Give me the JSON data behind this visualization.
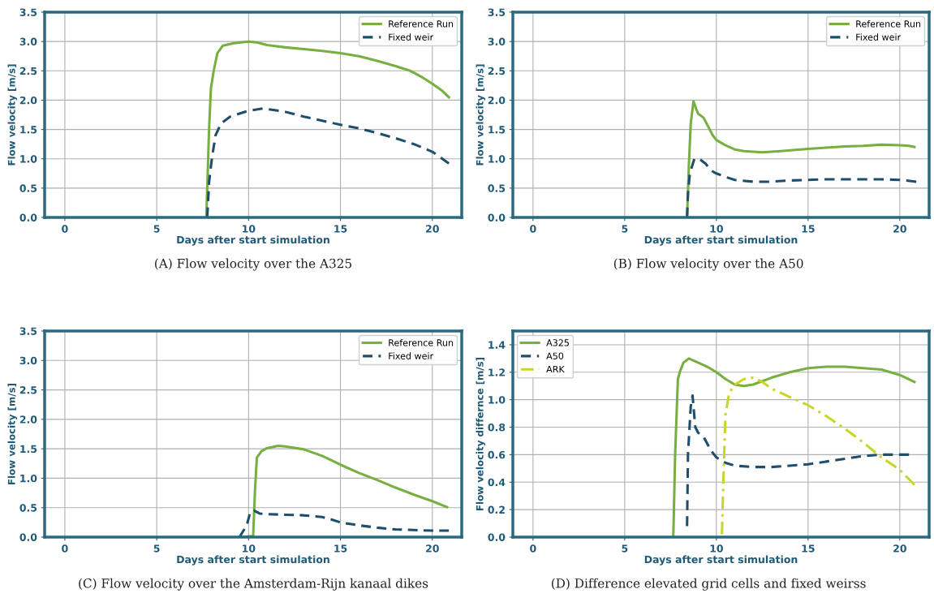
{
  "chart_data": [
    {
      "type": "line",
      "xlabel": "Days after start simulation",
      "ylabel": "Flow velocity [m/s]",
      "xlim": [
        -1.1,
        21.6
      ],
      "xticks": [
        0,
        5,
        10,
        15,
        20
      ],
      "ylim": [
        0,
        3.5
      ],
      "yticks": [
        {
          "value": 0,
          "label": "0.0"
        },
        0.5,
        {
          "value": 1,
          "label": "1.0"
        },
        1.5,
        {
          "value": 2,
          "label": "2.0"
        },
        2.5,
        {
          "value": 3,
          "label": "3.0"
        },
        3.5
      ],
      "grid": true,
      "legend": "top right",
      "annotations": [
        "(A) Flow velocity over the A325"
      ],
      "series": [
        {
          "name": "Reference Run",
          "color": "#77b041",
          "line_style": "solid",
          "x": [
            7.7,
            7.75,
            7.85,
            7.95,
            8.1,
            8.3,
            8.6,
            9.2,
            10,
            10.5,
            11,
            12,
            13,
            14,
            15,
            16,
            17,
            18,
            18.8,
            19.5,
            20,
            20.5,
            20.9
          ],
          "values": [
            0,
            0.5,
            1.5,
            2.2,
            2.5,
            2.8,
            2.93,
            2.97,
            3.0,
            2.98,
            2.94,
            2.9,
            2.87,
            2.84,
            2.8,
            2.75,
            2.67,
            2.58,
            2.5,
            2.38,
            2.28,
            2.17,
            2.05
          ]
        },
        {
          "name": "Fixed weir",
          "color": "#1d4e6b",
          "line_style": "dashed",
          "x": [
            7.75,
            7.85,
            8.0,
            8.2,
            8.5,
            9,
            10,
            10.8,
            12,
            13,
            14,
            15,
            16,
            17,
            18,
            19,
            20,
            20.9
          ],
          "values": [
            0,
            0.6,
            1.0,
            1.4,
            1.6,
            1.72,
            1.82,
            1.86,
            1.8,
            1.72,
            1.65,
            1.58,
            1.52,
            1.44,
            1.35,
            1.25,
            1.12,
            0.92
          ]
        }
      ]
    },
    {
      "type": "line",
      "xlabel": "Days after start simulation",
      "ylabel": "Flow velocity [m/s]",
      "xlim": [
        -1.1,
        21.6
      ],
      "xticks": [
        0,
        5,
        10,
        15,
        20
      ],
      "ylim": [
        0,
        3.5
      ],
      "yticks": [
        {
          "value": 0,
          "label": "0.0"
        },
        0.5,
        {
          "value": 1,
          "label": "1.0"
        },
        1.5,
        {
          "value": 2,
          "label": "2.0"
        },
        2.5,
        {
          "value": 3,
          "label": "3.0"
        },
        3.5
      ],
      "grid": true,
      "legend": "top right",
      "annotations": [
        "(B) Flow velocity over the A50"
      ],
      "series": [
        {
          "name": "Reference Run",
          "color": "#77b041",
          "line_style": "solid",
          "x": [
            8.4,
            8.5,
            8.6,
            8.75,
            8.9,
            9.0,
            9.3,
            9.5,
            9.8,
            10,
            10.5,
            11,
            11.5,
            12.5,
            13.5,
            15,
            16,
            17,
            18,
            19,
            20,
            20.5,
            20.8
          ],
          "values": [
            0,
            0.9,
            1.6,
            1.98,
            1.85,
            1.77,
            1.7,
            1.58,
            1.4,
            1.32,
            1.23,
            1.16,
            1.13,
            1.11,
            1.13,
            1.17,
            1.19,
            1.21,
            1.22,
            1.24,
            1.23,
            1.22,
            1.2
          ]
        },
        {
          "name": "Fixed weir",
          "color": "#1d4e6b",
          "line_style": "dashed",
          "x": [
            8.4,
            8.45,
            8.55,
            8.8,
            9.1,
            9.4,
            9.7,
            10,
            10.5,
            11,
            12,
            13,
            14,
            15,
            16,
            17,
            18,
            19,
            20,
            20.9
          ],
          "values": [
            0,
            0.4,
            0.75,
            1.0,
            0.99,
            0.92,
            0.8,
            0.75,
            0.69,
            0.64,
            0.61,
            0.61,
            0.63,
            0.64,
            0.65,
            0.65,
            0.65,
            0.65,
            0.64,
            0.61
          ]
        }
      ]
    },
    {
      "type": "line",
      "xlabel": "Days after start simulation",
      "ylabel": "Flow velocity [m/s]",
      "xlim": [
        -1.1,
        21.6
      ],
      "xticks": [
        0,
        5,
        10,
        15,
        20
      ],
      "ylim": [
        0,
        3.5
      ],
      "yticks": [
        {
          "value": 0,
          "label": "0.0"
        },
        0.5,
        {
          "value": 1,
          "label": "1.0"
        },
        1.5,
        {
          "value": 2,
          "label": "2.0"
        },
        2.5,
        {
          "value": 3,
          "label": "3.0"
        },
        3.5
      ],
      "grid": true,
      "legend": "top right",
      "annotations": [
        "(C) Flow velocity over the Amsterdam-Rijn kanaal dikes"
      ],
      "series": [
        {
          "name": "Reference Run",
          "color": "#77b041",
          "line_style": "solid",
          "x": [
            9.6,
            10.25,
            10.35,
            10.45,
            10.7,
            11,
            11.6,
            12,
            13,
            14,
            15,
            16,
            17,
            18,
            19,
            20,
            20.8
          ],
          "values": [
            0,
            0.02,
            0.8,
            1.35,
            1.46,
            1.51,
            1.55,
            1.54,
            1.49,
            1.38,
            1.23,
            1.09,
            0.97,
            0.84,
            0.72,
            0.61,
            0.51
          ]
        },
        {
          "name": "Fixed weir",
          "color": "#1d4e6b",
          "line_style": "dashed",
          "x": [
            9.5,
            9.9,
            10.1,
            10.3,
            10.6,
            11,
            12,
            13,
            14,
            14.5,
            15,
            16,
            17,
            18,
            19,
            20,
            20.9
          ],
          "values": [
            0,
            0.2,
            0.43,
            0.45,
            0.4,
            0.39,
            0.38,
            0.37,
            0.34,
            0.3,
            0.25,
            0.2,
            0.16,
            0.13,
            0.12,
            0.11,
            0.11
          ]
        }
      ]
    },
    {
      "type": "line",
      "xlabel": "Days after start simulation",
      "ylabel": "Flow velocity differnce [m/s]",
      "xlim": [
        -1.1,
        21.6
      ],
      "xticks": [
        0,
        5,
        10,
        15,
        20
      ],
      "ylim": [
        0,
        1.5
      ],
      "yticks": [
        {
          "value": 0,
          "label": "0.0"
        },
        0.2,
        0.4,
        0.6,
        0.8,
        {
          "value": 1,
          "label": "1.0"
        },
        1.2,
        1.4
      ],
      "grid": true,
      "legend": "top left",
      "annotations": [
        "(D) Difference elevated grid cells and fixed weirss"
      ],
      "series": [
        {
          "name": "A325",
          "color": "#77b041",
          "line_style": "solid",
          "x": [
            7.65,
            7.75,
            7.9,
            8.0,
            8.2,
            8.5,
            9,
            9.5,
            10,
            10.5,
            11,
            11.5,
            12,
            13,
            14,
            15,
            16,
            17,
            18,
            19,
            20,
            20.8
          ],
          "values": [
            0,
            0.6,
            1.15,
            1.2,
            1.27,
            1.3,
            1.27,
            1.24,
            1.2,
            1.15,
            1.11,
            1.1,
            1.11,
            1.16,
            1.2,
            1.23,
            1.24,
            1.24,
            1.23,
            1.22,
            1.18,
            1.13
          ]
        },
        {
          "name": "A50",
          "color": "#1d4e6b",
          "line_style": "dashed",
          "x": [
            8.4,
            8.45,
            8.6,
            8.7,
            8.85,
            9.0,
            9.3,
            9.7,
            10,
            10.5,
            11,
            12,
            13,
            14,
            15,
            16,
            17,
            18,
            19,
            20.5
          ],
          "values": [
            0.08,
            0.6,
            0.95,
            1.03,
            0.8,
            0.76,
            0.73,
            0.63,
            0.58,
            0.54,
            0.52,
            0.51,
            0.51,
            0.52,
            0.53,
            0.55,
            0.57,
            0.59,
            0.6,
            0.6
          ]
        },
        {
          "name": "ARK",
          "color": "#c8d62b",
          "line_style": "dashdot",
          "x": [
            10.3,
            10.4,
            10.5,
            10.7,
            11,
            11.5,
            12,
            12.5,
            13,
            14,
            15,
            16,
            17,
            18,
            19,
            20,
            20.8
          ],
          "values": [
            0.02,
            0.5,
            0.9,
            1.05,
            1.11,
            1.15,
            1.16,
            1.13,
            1.08,
            1.02,
            0.96,
            0.88,
            0.79,
            0.69,
            0.58,
            0.49,
            0.38
          ]
        }
      ]
    }
  ]
}
